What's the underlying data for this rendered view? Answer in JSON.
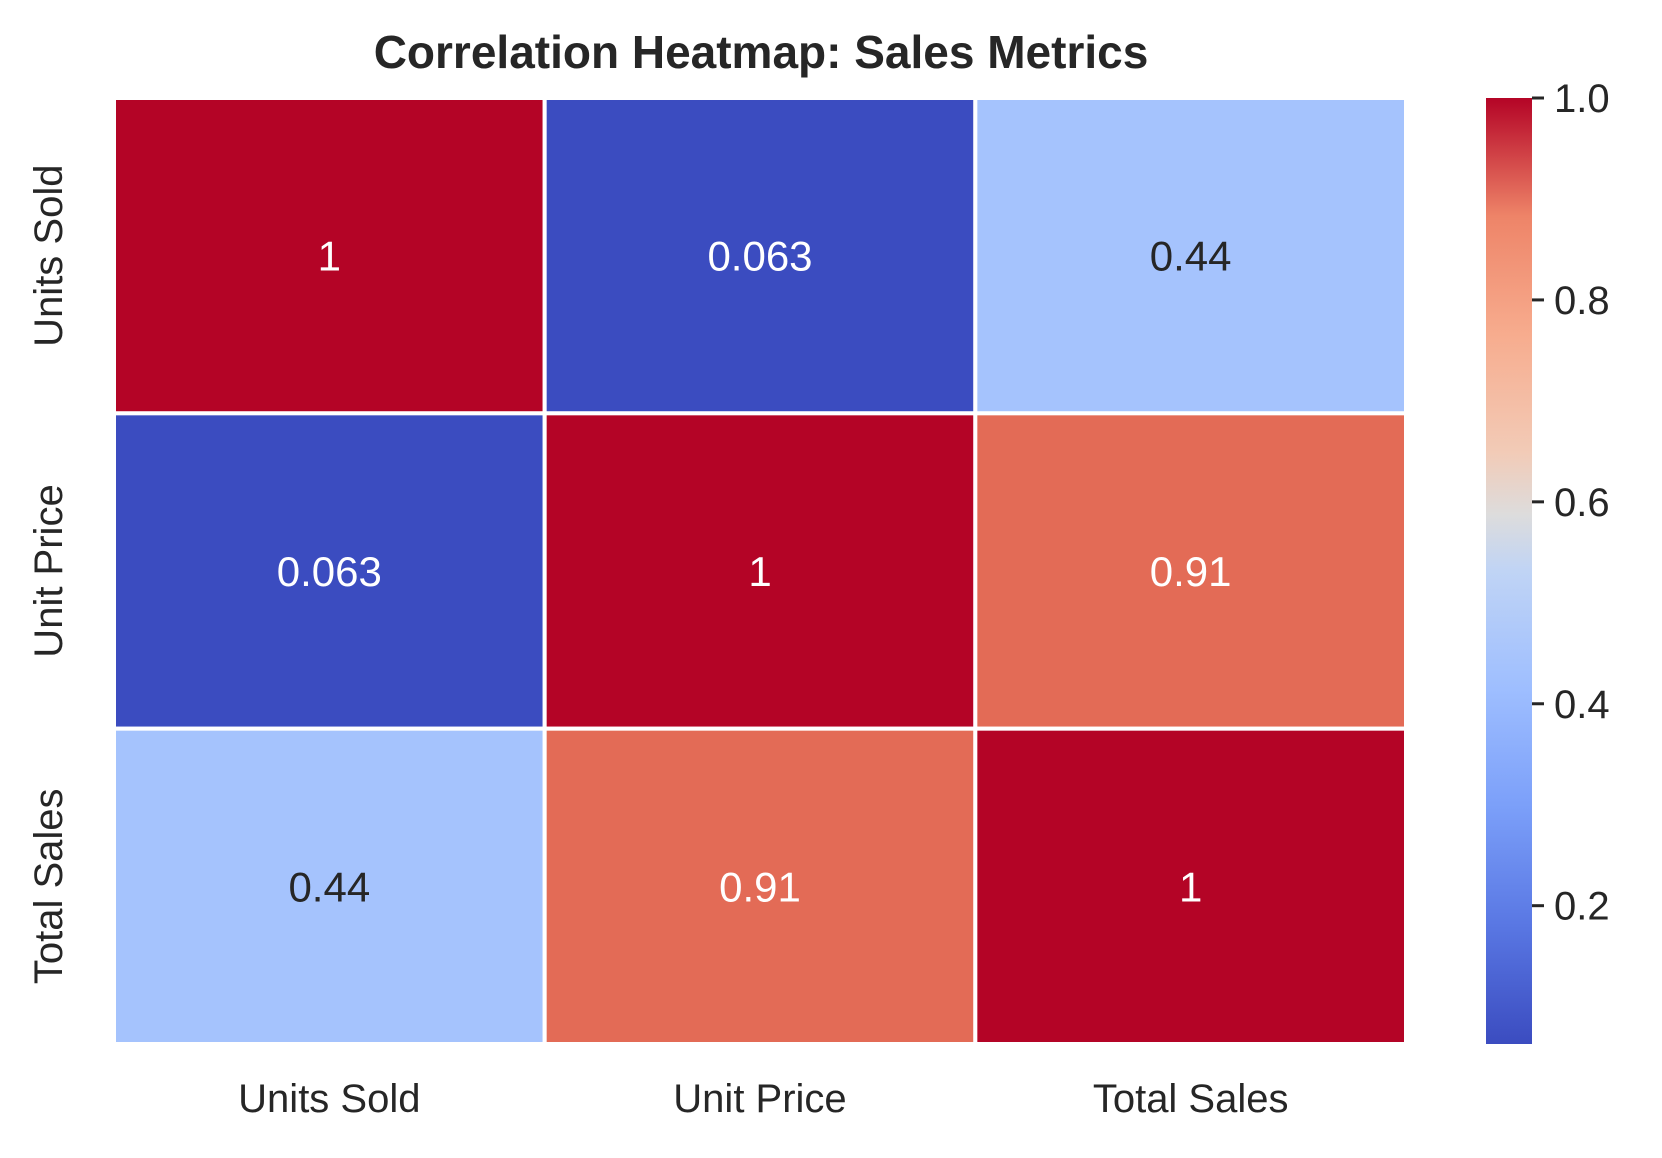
{
  "chart_data": {
    "type": "heatmap",
    "title": "Correlation Heatmap: Sales Metrics",
    "xlabel": "",
    "ylabel": "",
    "x_categories": [
      "Units Sold",
      "Unit Price",
      "Total Sales"
    ],
    "y_categories": [
      "Units Sold",
      "Unit Price",
      "Total Sales"
    ],
    "values": [
      [
        1,
        0.063,
        0.44
      ],
      [
        0.063,
        1,
        0.91
      ],
      [
        0.44,
        0.91,
        1
      ]
    ],
    "annotations": [
      [
        "1",
        "0.063",
        "0.44"
      ],
      [
        "0.063",
        "1",
        "0.91"
      ],
      [
        "0.44",
        "0.91",
        "1"
      ]
    ],
    "colormap": "coolwarm",
    "vmin": 0.063,
    "vmax": 1,
    "colorbar": {
      "ticks": [
        "0.2",
        "0.4",
        "0.6",
        "0.8",
        "1.0"
      ],
      "tick_values": [
        0.2,
        0.4,
        0.6,
        0.8,
        1.0
      ],
      "placement": "right"
    },
    "grid_line_color": "#ffffff",
    "text_color_dark": "#262626",
    "text_color_light": "#ffffff"
  }
}
